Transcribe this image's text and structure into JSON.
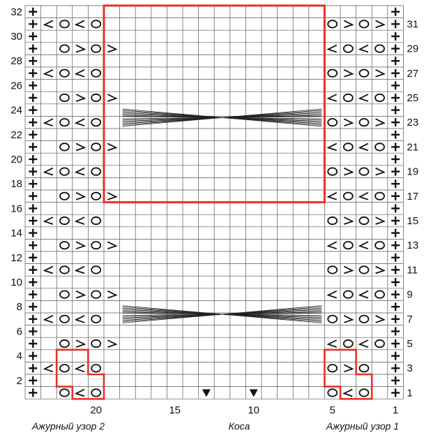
{
  "chart_title": "",
  "sections": [
    {
      "label": "Ажурный узор 2",
      "cols": [
        20,
        23
      ]
    },
    {
      "label": "Коса",
      "cols": [
        6,
        19
      ]
    },
    {
      "label": "Ажурный узор 1",
      "cols": [
        2,
        5
      ]
    }
  ],
  "column_labels": [
    "20",
    "15",
    "10",
    "5",
    "1"
  ],
  "row_labels_left": [
    "2",
    "4",
    "6",
    "8",
    "10",
    "12",
    "14",
    "16",
    "18",
    "20",
    "22",
    "24",
    "26",
    "28",
    "30",
    "32"
  ],
  "row_labels_right": [
    "1",
    "3",
    "5",
    "7",
    "9",
    "11",
    "13",
    "15",
    "17",
    "19",
    "21",
    "23",
    "25",
    "27",
    "29",
    "31"
  ],
  "grid": {
    "columns": 24,
    "rows": 32,
    "edge_columns": [
      1,
      24
    ]
  },
  "symbols": {
    "edge": "+",
    "yarn_over": "O",
    "k2tog_left": "<",
    "k2tog_right": ">",
    "marker": "▼"
  },
  "pattern2_odd_rows": {
    "1": [
      "",
      "O",
      "<",
      "O"
    ],
    "3": [
      "<",
      "O",
      "<",
      "O"
    ],
    "5": [
      "",
      "O",
      ">",
      "O",
      ">"
    ]
  },
  "pattern_left_cycle": [
    [
      "<",
      "O",
      "<",
      "O"
    ],
    [
      "",
      "O",
      ">",
      "O",
      ">"
    ]
  ],
  "pattern_right_cycle": [
    [
      "O",
      ">",
      "O",
      ">"
    ],
    [
      "<",
      "O",
      "<",
      "O"
    ]
  ],
  "pattern1_bottom": {
    "1": [
      "O",
      "<",
      "O",
      ""
    ],
    "3": [
      "O",
      ">",
      "O",
      ""
    ],
    "5": [
      "<",
      "O",
      "<",
      "O"
    ]
  },
  "cable_rows": [
    7,
    23
  ],
  "marker_columns": [
    13,
    10
  ],
  "highlight_color": "#e8302a",
  "grid_color": "#555555",
  "symbol_color": "#111111"
}
